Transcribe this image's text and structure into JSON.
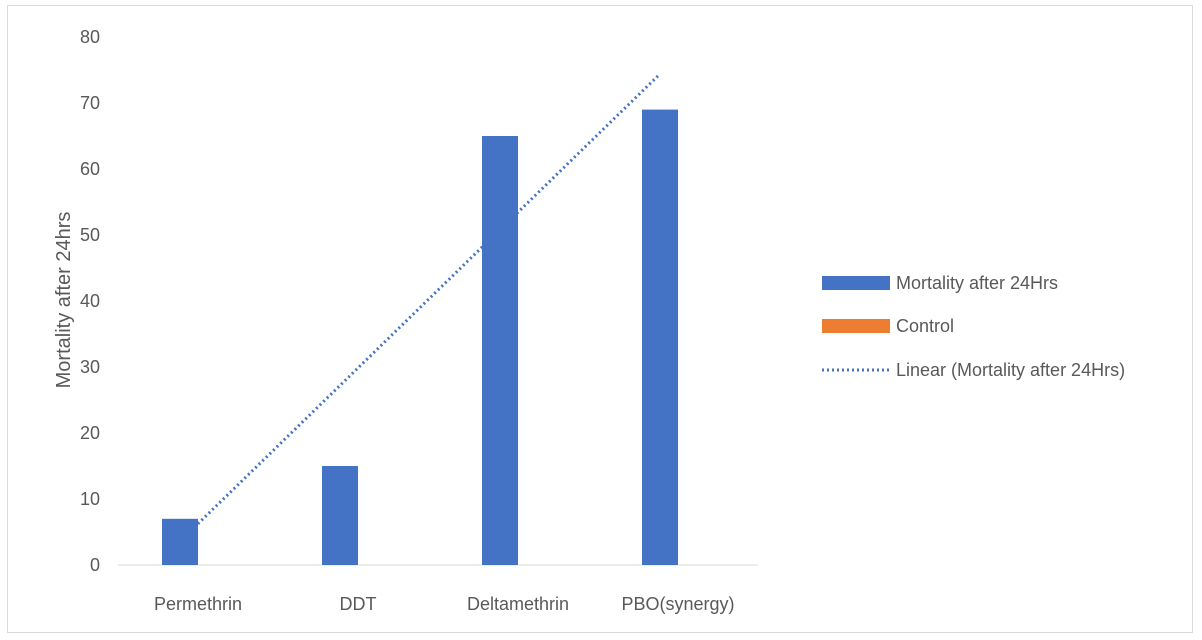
{
  "chart_data": {
    "type": "bar",
    "categories": [
      "Permethrin",
      "DDT",
      "Deltamethrin",
      "PBO(synergy)"
    ],
    "series": [
      {
        "name": "Mortality after 24Hrs",
        "values": [
          7,
          15,
          65,
          69
        ],
        "color": "#4472c4"
      },
      {
        "name": "Control",
        "values": [
          0,
          0,
          0,
          0
        ],
        "color": "#ed7d31"
      }
    ],
    "trendline": {
      "name": "Linear (Mortality after 24Hrs)",
      "kind": "linear",
      "of_series": "Mortality after 24Hrs",
      "color": "#4472c4",
      "style": "dotted"
    },
    "title": "",
    "xlabel": "",
    "ylabel": "Mortality after 24hrs",
    "ylim": [
      0,
      80
    ],
    "yticks": [
      0,
      10,
      20,
      30,
      40,
      50,
      60,
      70,
      80
    ],
    "grid": false,
    "legend_position": "right"
  }
}
